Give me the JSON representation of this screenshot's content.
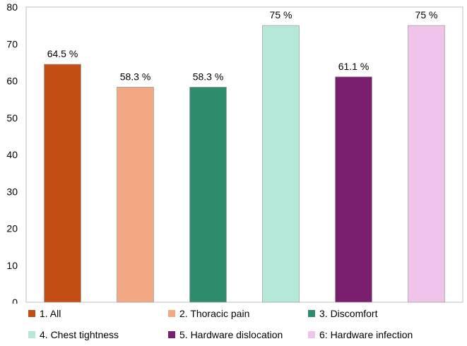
{
  "chart_data": {
    "type": "bar",
    "categories": [
      "1. All",
      "2. Thoracic pain",
      "3. Discomfort",
      "4. Chest tightness",
      "5. Hardware dislocation",
      "6: Hardware infection"
    ],
    "values": [
      64.5,
      58.3,
      58.3,
      75,
      61.1,
      75
    ],
    "data_labels": [
      "64.5 %",
      "58.3 %",
      "58.3 %",
      "75 %",
      "61.1 %",
      "75 %"
    ],
    "colors": [
      "#C24E14",
      "#F2A882",
      "#2E8B6B",
      "#B5E8D8",
      "#7A1F6E",
      "#F0C4EA"
    ],
    "ylim": [
      0,
      80
    ],
    "yticks": [
      0,
      10,
      20,
      30,
      40,
      50,
      60,
      70,
      80
    ],
    "grid": false,
    "legend_position": "bottom",
    "title": "",
    "xlabel": "",
    "ylabel": ""
  }
}
